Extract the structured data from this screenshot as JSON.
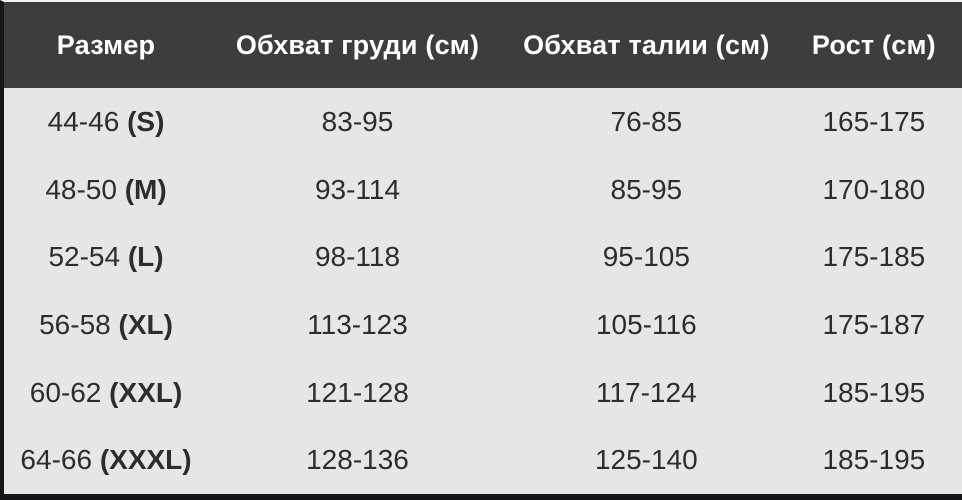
{
  "table": {
    "columns": [
      {
        "label": "Размер"
      },
      {
        "label": "Обхват груди (см)"
      },
      {
        "label": "Обхват талии (см)"
      },
      {
        "label": "Рост (см)"
      }
    ],
    "rows": [
      {
        "size": "44-46",
        "size_code": "(S)",
        "chest": "83-95",
        "waist": "76-85",
        "height": "165-175"
      },
      {
        "size": "48-50",
        "size_code": "(M)",
        "chest": "93-114",
        "waist": "85-95",
        "height": "170-180"
      },
      {
        "size": "52-54",
        "size_code": "(L)",
        "chest": "98-118",
        "waist": "95-105",
        "height": "175-185"
      },
      {
        "size": "56-58",
        "size_code": "(XL)",
        "chest": "113-123",
        "waist": "105-116",
        "height": "175-187"
      },
      {
        "size": "60-62",
        "size_code": "(XXL)",
        "chest": "121-128",
        "waist": "117-124",
        "height": "185-195"
      },
      {
        "size": "64-66",
        "size_code": "(XXXL)",
        "chest": "128-136",
        "waist": "125-140",
        "height": "185-195"
      }
    ]
  },
  "colors": {
    "header_bg": "#3d3d3d",
    "header_text": "#ffffff",
    "body_bg": "#e6e6e6",
    "text": "#2d2d2d",
    "frame": "#16161a"
  }
}
